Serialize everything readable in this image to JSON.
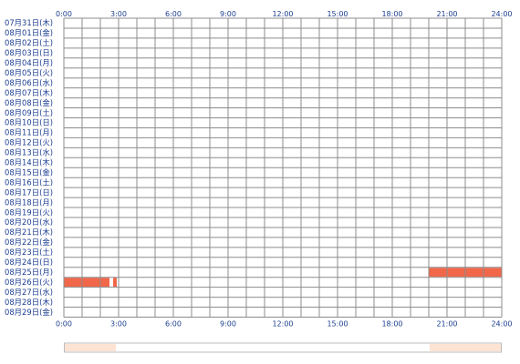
{
  "chart_data": {
    "type": "heatmap",
    "x_ticks": [
      "0:00",
      "3:00",
      "6:00",
      "9:00",
      "12:00",
      "15:00",
      "18:00",
      "21:00",
      "24:00"
    ],
    "xlim": [
      0,
      24
    ],
    "days": [
      "07月31日(木)",
      "08月01日(金)",
      "08月02日(土)",
      "08月03日(日)",
      "08月04日(月)",
      "08月05日(火)",
      "08月06日(水)",
      "08月07日(木)",
      "08月08日(金)",
      "08月09日(土)",
      "08月10日(日)",
      "08月11日(月)",
      "08月12日(火)",
      "08月13日(水)",
      "08月14日(木)",
      "08月15日(金)",
      "08月16日(土)",
      "08月17日(日)",
      "08月18日(月)",
      "08月19日(火)",
      "08月20日(水)",
      "08月21日(木)",
      "08月22日(金)",
      "08月23日(土)",
      "08月24日(日)",
      "08月25日(月)",
      "08月26日(火)",
      "08月27日(水)",
      "08月28日(木)",
      "08月29日(金)"
    ],
    "activity": [
      {
        "day": "08月25日(月)",
        "start": 20.0,
        "end": 24.0
      },
      {
        "day": "08月26日(火)",
        "start": 0.0,
        "end": 2.5
      },
      {
        "day": "08月26日(火)",
        "start": 2.7,
        "end": 2.9
      }
    ],
    "summary_bar": [
      {
        "start": 0.0,
        "end": 2.9
      },
      {
        "start": 20.0,
        "end": 24.0
      }
    ],
    "grid": true,
    "grid_step_hours": 1,
    "colors": {
      "grid": "#8c8c8c",
      "activity": "#f0674a",
      "summary_fill": "#fde3d3",
      "summary_border": "#bbbbbb",
      "label_text": "#1a3d8f"
    }
  }
}
